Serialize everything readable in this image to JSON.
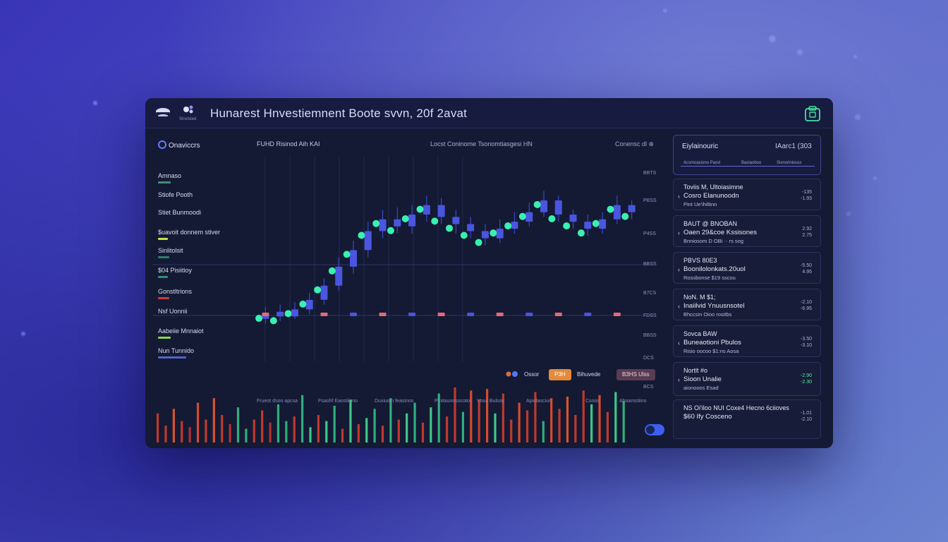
{
  "window": {
    "title": "Hunarest Hnvestiemnent Boote svvn, 20f 2avat",
    "logo_sub": "Sinvisted"
  },
  "main": {
    "sidebar_heading": "Onaviccrs",
    "chart_header_left": "FUHD Risinod Aih KAI",
    "chart_header_mid": "Locst Coninome Tsonomtiasgesi HN",
    "chart_header_right": "Conensc dl ⊕"
  },
  "sidebar": {
    "items": [
      {
        "label": "Amnaso",
        "bar_color": "#3e8e73",
        "bar_width": 18
      },
      {
        "label": "Stiofe Pooth",
        "bar_color": "",
        "bar_width": 0
      },
      {
        "label": "Stiet Bunmoodi",
        "bar_color": "",
        "bar_width": 0
      },
      {
        "label": "$uavoit donnem stiver",
        "bar_color": "#c7e24b",
        "bar_width": 14
      },
      {
        "label": "Sinlitolsit",
        "bar_color": "#2d7d6a",
        "bar_width": 16
      },
      {
        "label": "$04 Pisiitioy",
        "bar_color": "#2f8f6f",
        "bar_width": 14
      },
      {
        "label": "Gonstltrions",
        "bar_color": "#c63c3c",
        "bar_width": 16
      },
      {
        "label": "Nsf Uonnii",
        "bar_color": "",
        "bar_width": 0
      },
      {
        "label": "Aabeiie Mnnaiot",
        "bar_color": "#8bd64a",
        "bar_width": 18
      },
      {
        "label": "Nun Tunnido",
        "bar_color": "#5563c8",
        "bar_width": 40
      }
    ]
  },
  "x_ticks": [
    "Frueot dsoo apcsa",
    "Fsaohf Eaostiiono",
    "Duxiuoin feasinos",
    "Pinitaunosocotoi",
    "Vtoui Bulsoy",
    "Apiolasciun",
    "Csoos",
    "Aboamstiino"
  ],
  "y_ticks": [
    "BBTS",
    "PBSS",
    "P4SS",
    "BBSS",
    "B7CS",
    "FDSS",
    "BBSS",
    "DCS",
    "BCS"
  ],
  "legend": {
    "item1": "Ossor",
    "item2": "P3H",
    "item3": "Bihuvede",
    "item4": "B3HS Ulss"
  },
  "right_panel": {
    "top_card": {
      "title": "Eiylainouric",
      "value": "IAarc1 (303",
      "tabs": [
        "Acsmoasiono Pasvi",
        "Basiaoboo",
        "Sisnoriniouss"
      ]
    },
    "cards": [
      {
        "line1": "Toviis M, Ultoiasimne",
        "line2": "Cosro Elanunoodn",
        "line3": "Pint Ue'ihiltinn",
        "value": "-135\n-1.93",
        "green": false
      },
      {
        "line1": "BAUT @ BNOBAN",
        "line2": "Oaen 29&coe Kssisones",
        "line3": "Bnniosom D OBi ·· rs sog",
        "value": "2.92\n2.75",
        "green": false
      },
      {
        "line1": "PBVS 80E3",
        "line2": "Boonilolonkats.20uol",
        "line3": "Rossbonse $19 sscou",
        "value": "-5.50\n4.95",
        "green": false
      },
      {
        "line1": "NoN. M $1;",
        "line2": "Inaiilvid Ynuusnsotel",
        "line3": "Bhccsin Oioo rositbs",
        "value": "-2.10\n-6.95",
        "green": false
      },
      {
        "line1": "Sovca BAW",
        "line2": "Buneaotioni Pbulos",
        "line3": "Risio oocoo $1:ns Aosa",
        "value": "-3.50\n-3.10",
        "green": false
      },
      {
        "line1": "Nortlt #o",
        "line2": "Sioon Unalie",
        "line3": "aionooos Esad",
        "value": "-2.90\n-2.30",
        "green": true
      },
      {
        "line1": "NS Oi'iloo NUI Coxe4 Hecno 6ciioves",
        "line2": "$60 Ify Cosceno",
        "line3": "",
        "value": "-1.01\n-2.10",
        "green": false
      }
    ]
  },
  "chart_data": {
    "type": "bar",
    "title": "",
    "candles": [
      {
        "o": 34,
        "c": 36,
        "h": 39,
        "l": 32,
        "up": true
      },
      {
        "o": 37,
        "c": 35,
        "h": 40,
        "l": 33,
        "up": false
      },
      {
        "o": 35,
        "c": 38,
        "h": 41,
        "l": 34,
        "up": true
      },
      {
        "o": 38,
        "c": 42,
        "h": 45,
        "l": 36,
        "up": true
      },
      {
        "o": 42,
        "c": 48,
        "h": 51,
        "l": 40,
        "up": true
      },
      {
        "o": 48,
        "c": 56,
        "h": 60,
        "l": 46,
        "up": true
      },
      {
        "o": 56,
        "c": 63,
        "h": 67,
        "l": 53,
        "up": true
      },
      {
        "o": 63,
        "c": 71,
        "h": 75,
        "l": 60,
        "up": true
      },
      {
        "o": 71,
        "c": 76,
        "h": 80,
        "l": 68,
        "up": true
      },
      {
        "o": 76,
        "c": 73,
        "h": 81,
        "l": 70,
        "up": false
      },
      {
        "o": 73,
        "c": 78,
        "h": 82,
        "l": 70,
        "up": true
      },
      {
        "o": 78,
        "c": 82,
        "h": 86,
        "l": 75,
        "up": true
      },
      {
        "o": 82,
        "c": 77,
        "h": 85,
        "l": 74,
        "up": false
      },
      {
        "o": 77,
        "c": 74,
        "h": 80,
        "l": 70,
        "up": false
      },
      {
        "o": 74,
        "c": 71,
        "h": 77,
        "l": 68,
        "up": false
      },
      {
        "o": 71,
        "c": 68,
        "h": 74,
        "l": 65,
        "up": false
      },
      {
        "o": 68,
        "c": 72,
        "h": 76,
        "l": 66,
        "up": true
      },
      {
        "o": 72,
        "c": 75,
        "h": 79,
        "l": 70,
        "up": true
      },
      {
        "o": 75,
        "c": 79,
        "h": 83,
        "l": 73,
        "up": true
      },
      {
        "o": 79,
        "c": 84,
        "h": 88,
        "l": 77,
        "up": true
      },
      {
        "o": 84,
        "c": 78,
        "h": 86,
        "l": 75,
        "up": false
      },
      {
        "o": 78,
        "c": 75,
        "h": 80,
        "l": 72,
        "up": false
      },
      {
        "o": 75,
        "c": 72,
        "h": 78,
        "l": 69,
        "up": false
      },
      {
        "o": 72,
        "c": 76,
        "h": 79,
        "l": 70,
        "up": true
      },
      {
        "o": 76,
        "c": 82,
        "h": 86,
        "l": 74,
        "up": true
      },
      {
        "o": 82,
        "c": 79,
        "h": 84,
        "l": 76,
        "up": false
      }
    ],
    "volume": [
      {
        "v": 38,
        "c": "#c0392b"
      },
      {
        "v": 22,
        "c": "#c0392b"
      },
      {
        "v": 44,
        "c": "#d9542b"
      },
      {
        "v": 28,
        "c": "#c0392b"
      },
      {
        "v": 20,
        "c": "#b03030"
      },
      {
        "v": 52,
        "c": "#d84a2c"
      },
      {
        "v": 30,
        "c": "#c0392b"
      },
      {
        "v": 58,
        "c": "#d9542b"
      },
      {
        "v": 36,
        "c": "#c0392b"
      },
      {
        "v": 24,
        "c": "#b03030"
      },
      {
        "v": 46,
        "c": "#2fae7c"
      },
      {
        "v": 18,
        "c": "#2fae7c"
      },
      {
        "v": 30,
        "c": "#c0392b"
      },
      {
        "v": 42,
        "c": "#c0392b"
      },
      {
        "v": 26,
        "c": "#b03030"
      },
      {
        "v": 50,
        "c": "#2fae7c"
      },
      {
        "v": 28,
        "c": "#2fae7c"
      },
      {
        "v": 34,
        "c": "#c0392b"
      },
      {
        "v": 62,
        "c": "#2fae7c"
      },
      {
        "v": 20,
        "c": "#3fc78a"
      },
      {
        "v": 36,
        "c": "#c0392b"
      },
      {
        "v": 28,
        "c": "#3fc78a"
      },
      {
        "v": 48,
        "c": "#2fae7c"
      },
      {
        "v": 18,
        "c": "#c0392b"
      },
      {
        "v": 56,
        "c": "#3fc78a"
      },
      {
        "v": 24,
        "c": "#c0392b"
      },
      {
        "v": 32,
        "c": "#3fc78a"
      },
      {
        "v": 44,
        "c": "#2fae7c"
      },
      {
        "v": 22,
        "c": "#c0392b"
      },
      {
        "v": 58,
        "c": "#2fae7c"
      },
      {
        "v": 30,
        "c": "#c0392b"
      },
      {
        "v": 38,
        "c": "#3fc78a"
      },
      {
        "v": 52,
        "c": "#2fae7c"
      },
      {
        "v": 26,
        "c": "#c0392b"
      },
      {
        "v": 46,
        "c": "#3fc78a"
      },
      {
        "v": 64,
        "c": "#2fae7c"
      },
      {
        "v": 34,
        "c": "#c0392b"
      },
      {
        "v": 72,
        "c": "#c0392b"
      },
      {
        "v": 40,
        "c": "#2fae7c"
      },
      {
        "v": 68,
        "c": "#d84a2c"
      },
      {
        "v": 56,
        "c": "#c0392b"
      },
      {
        "v": 70,
        "c": "#d84a2c"
      },
      {
        "v": 38,
        "c": "#3fc78a"
      },
      {
        "v": 64,
        "c": "#c0392b"
      },
      {
        "v": 30,
        "c": "#c0392b"
      },
      {
        "v": 52,
        "c": "#d84a2c"
      },
      {
        "v": 42,
        "c": "#c0392b"
      },
      {
        "v": 66,
        "c": "#c0392b"
      },
      {
        "v": 28,
        "c": "#2fae7c"
      },
      {
        "v": 58,
        "c": "#d84a2c"
      },
      {
        "v": 44,
        "c": "#c0392b"
      },
      {
        "v": 60,
        "c": "#d9542b"
      },
      {
        "v": 36,
        "c": "#c0392b"
      },
      {
        "v": 68,
        "c": "#c0392b"
      },
      {
        "v": 50,
        "c": "#3fc78a"
      },
      {
        "v": 62,
        "c": "#d84a2c"
      },
      {
        "v": 40,
        "c": "#c0392b"
      },
      {
        "v": 66,
        "c": "#3fc78a"
      },
      {
        "v": 54,
        "c": "#2fae7c"
      }
    ],
    "colors": {
      "candle": "#4a55e0",
      "bubble": "#3af0b0",
      "price_dot": "#e46a7a"
    }
  }
}
